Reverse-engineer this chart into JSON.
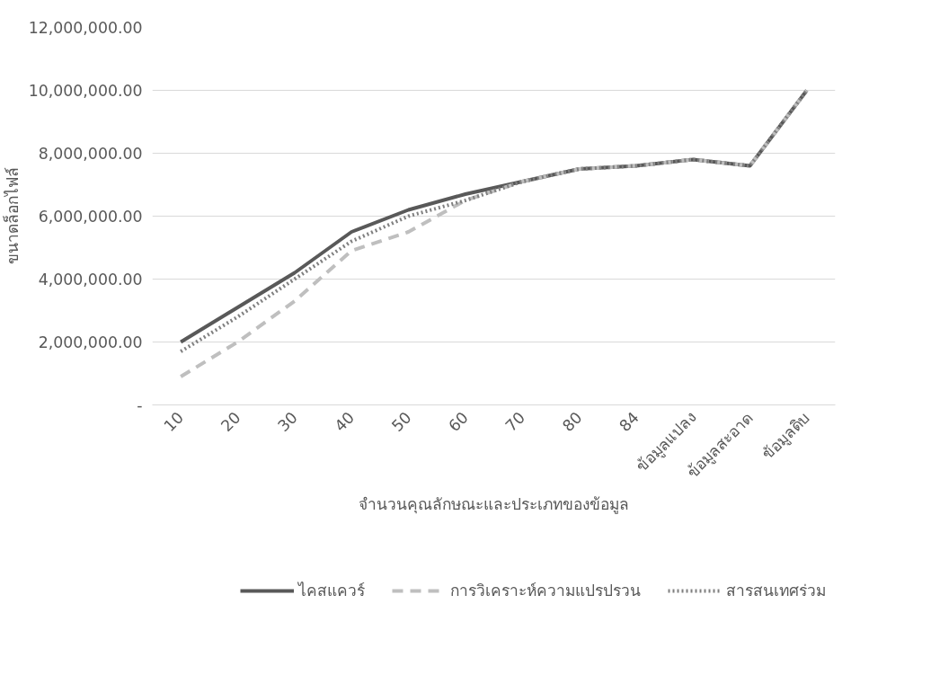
{
  "chart_data": {
    "type": "line",
    "xlabel": "จำนวนคุณลักษณะและประเภทของข้อมูล",
    "ylabel": "ขนาดล็อกไฟล์",
    "categories": [
      "10",
      "20",
      "30",
      "40",
      "50",
      "60",
      "70",
      "80",
      "84",
      "ข้อมูลแปลง",
      "ข้อมูลสะอาด",
      "ข้อมูลดิบ"
    ],
    "ylim": [
      0,
      12000000
    ],
    "yticks": [
      {
        "value": 0,
        "label": "-"
      },
      {
        "value": 2000000,
        "label": "2,000,000.00"
      },
      {
        "value": 4000000,
        "label": "4,000,000.00"
      },
      {
        "value": 6000000,
        "label": "6,000,000.00"
      },
      {
        "value": 8000000,
        "label": "8,000,000.00"
      },
      {
        "value": 10000000,
        "label": "10,000,000.00"
      },
      {
        "value": 12000000,
        "label": "12,000,000.00"
      }
    ],
    "grid": "y",
    "legend": "bottom",
    "marker": "none",
    "series": [
      {
        "name": "ไคสแควร์",
        "color": "#595959",
        "line_style": "solid",
        "values": [
          2000000,
          3100000,
          4200000,
          5500000,
          6200000,
          6700000,
          7100000,
          7500000,
          7600000,
          7800000,
          7600000,
          10000000
        ]
      },
      {
        "name": "การวิเคราะห์ความแปรปรวน",
        "color": "#bfbfbf",
        "line_style": "dashed",
        "values": [
          900000,
          2000000,
          3300000,
          4900000,
          5500000,
          6500000,
          7100000,
          7500000,
          7600000,
          7800000,
          7600000,
          10000000
        ]
      },
      {
        "name": "สารสนเทศร่วม",
        "color": "#808080",
        "line_style": "dotted",
        "values": [
          1700000,
          2800000,
          4000000,
          5200000,
          6000000,
          6500000,
          7100000,
          7500000,
          7600000,
          7800000,
          7600000,
          10000000
        ]
      }
    ]
  }
}
